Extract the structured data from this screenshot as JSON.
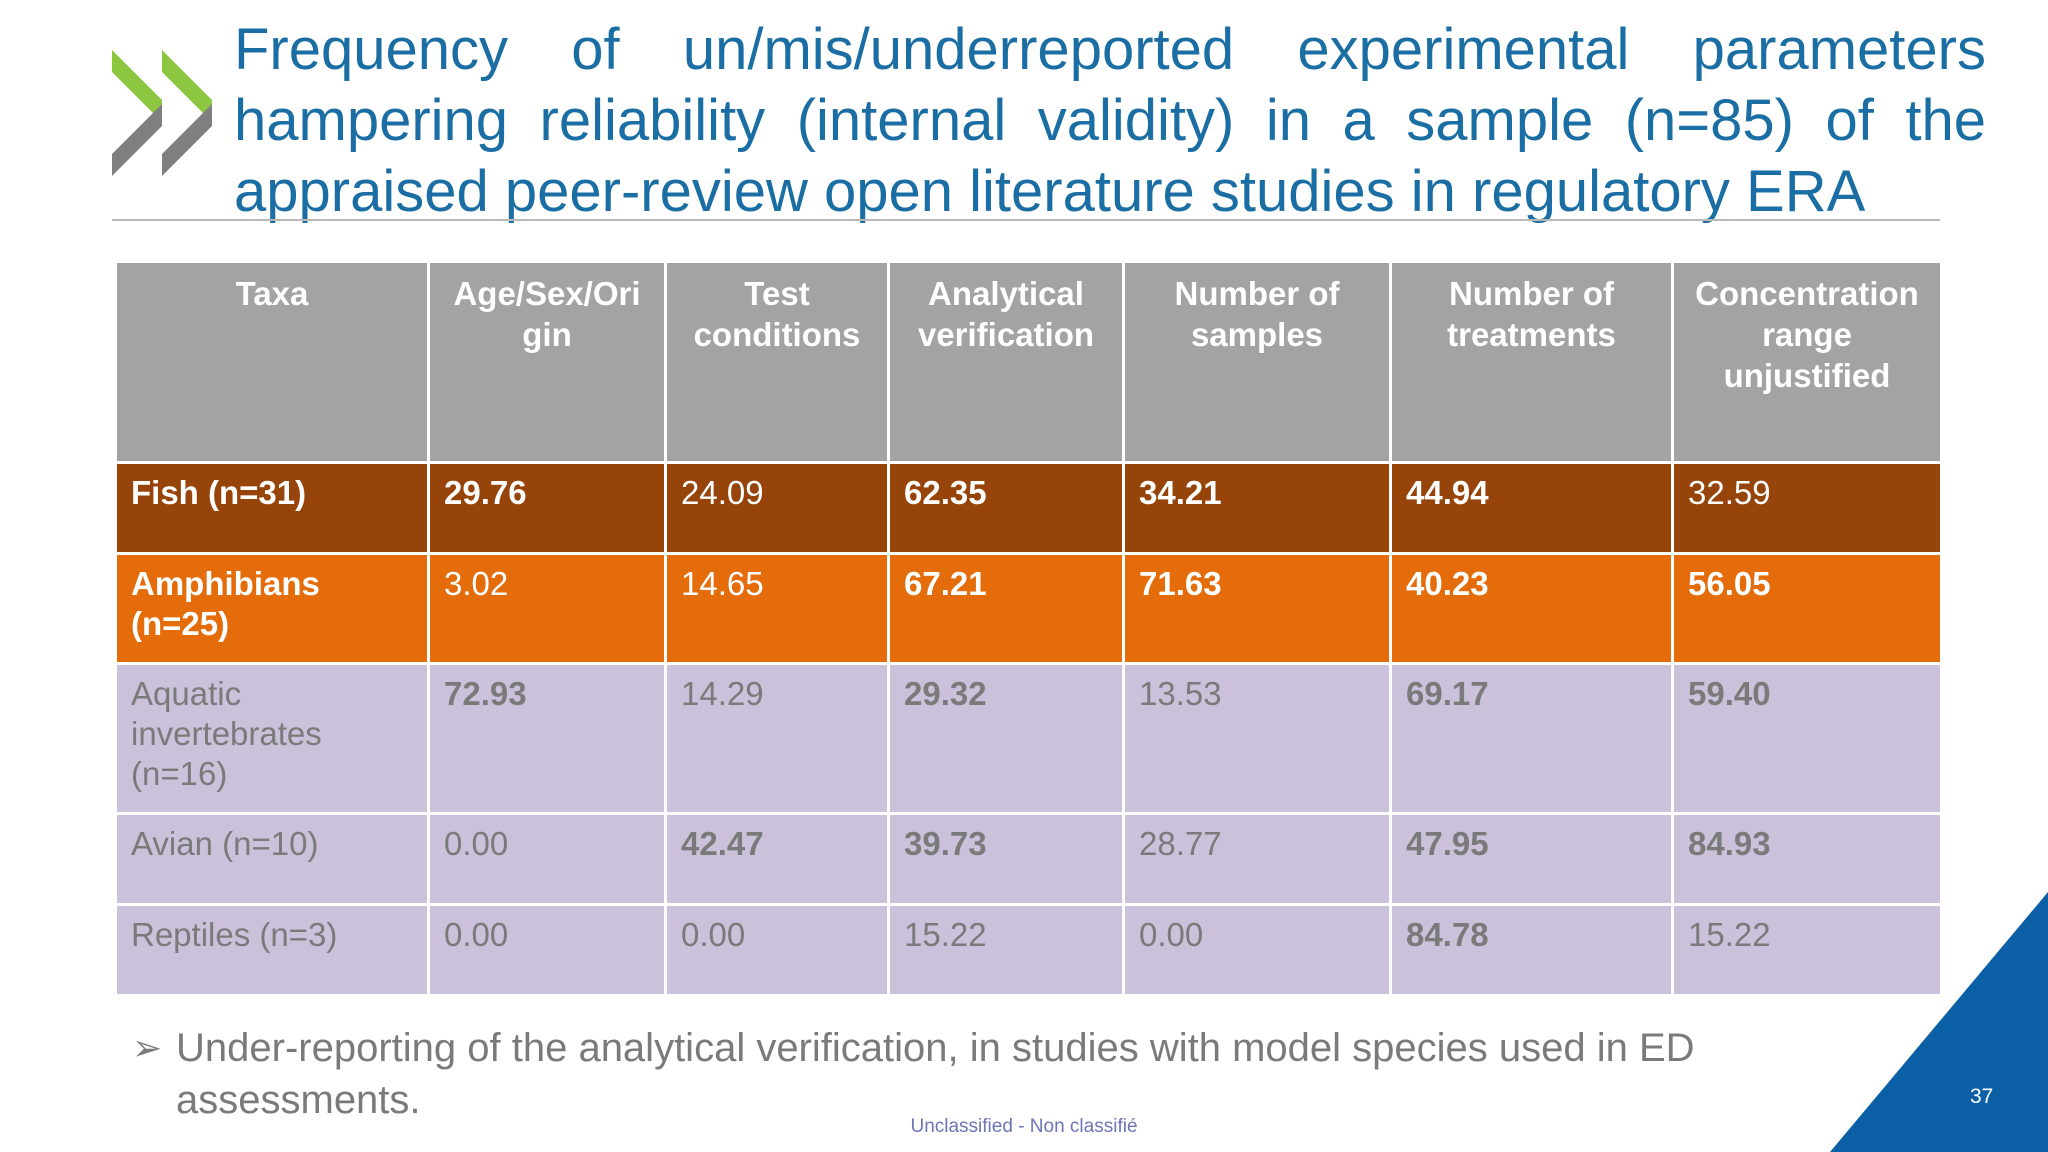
{
  "title": {
    "line1": "Frequency of un/mis/underreported experimental parameters",
    "line2": "hampering reliability (internal validity) in a sample (n=85) of the",
    "line3": "appraised peer-review open literature studies in regulatory ERA"
  },
  "logo": {
    "icon": "double-chevron-logo-icon",
    "colors": [
      "#8dc63f",
      "#808080"
    ]
  },
  "table": {
    "headers": [
      "Taxa",
      "Age/Sex/Ori gin",
      "Test conditions",
      "Analytical verification",
      "Number of samples",
      "Number of treatments",
      "Concentration range unjustified"
    ],
    "rows": [
      {
        "taxa": "Fish (n=31)",
        "values": [
          "29.76",
          "24.09",
          "62.35",
          "34.21",
          "44.94",
          "32.59"
        ]
      },
      {
        "taxa": "Amphibians (n=25)",
        "values": [
          "3.02",
          "14.65",
          "67.21",
          "71.63",
          "40.23",
          "56.05"
        ]
      },
      {
        "taxa": "Aquatic invertebrates (n=16)",
        "values": [
          "72.93",
          "14.29",
          "29.32",
          "13.53",
          "69.17",
          "59.40"
        ]
      },
      {
        "taxa": "Avian (n=10)",
        "values": [
          "0.00",
          "42.47",
          "39.73",
          "28.77",
          "47.95",
          "84.93"
        ]
      },
      {
        "taxa": "Reptiles (n=3)",
        "values": [
          "0.00",
          "0.00",
          "15.22",
          "0.00",
          "84.78",
          "15.22"
        ]
      }
    ],
    "colors": {
      "header": "#a3a3a3",
      "fish": "#964409",
      "amphibians": "#e46c0a",
      "other": "#ccc1da"
    }
  },
  "bullet": {
    "marker": "➢",
    "text": "Under-reporting of the analytical verification, in studies with model species used in ED assessments."
  },
  "footer": "Unclassified - Non classifié",
  "page_number": "37",
  "accent_color": "#0b5fa5"
}
